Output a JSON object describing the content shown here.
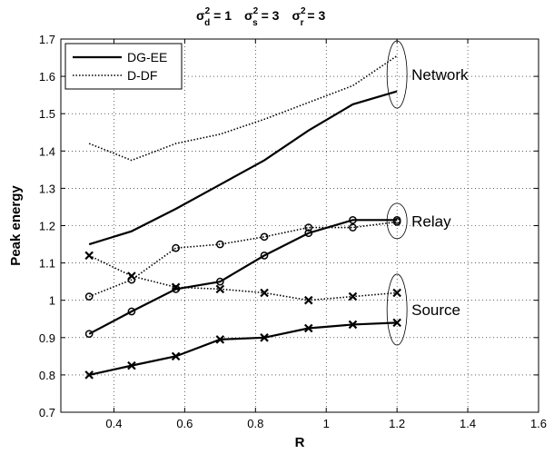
{
  "chart_data": {
    "type": "line",
    "title_parts": [
      {
        "sym": "σ",
        "sub": "d",
        "sup": "2",
        "val": " = 1"
      },
      {
        "sym": "σ",
        "sub": "s",
        "sup": "2",
        "val": " = 3"
      },
      {
        "sym": "σ",
        "sub": "r",
        "sup": "2",
        "val": " = 3"
      }
    ],
    "xlabel": "R",
    "ylabel": "Peak energy",
    "xlim": [
      0.25,
      1.6
    ],
    "ylim": [
      0.7,
      1.7
    ],
    "xticks": [
      0.4,
      0.6,
      0.8,
      1.0,
      1.2,
      1.4,
      1.6
    ],
    "yticks": [
      0.7,
      0.8,
      0.9,
      1.0,
      1.1,
      1.2,
      1.3,
      1.4,
      1.5,
      1.6,
      1.7
    ],
    "xtick_labels": [
      "0.4",
      "0.6",
      "0.8",
      "1",
      "1.2",
      "1.4",
      "1.6"
    ],
    "ytick_labels": [
      "0.7",
      "0.8",
      "0.9",
      "1",
      "1.1",
      "1.2",
      "1.3",
      "1.4",
      "1.5",
      "1.6",
      "1.7"
    ],
    "grid": true,
    "legend_position": "top-left",
    "legend": [
      {
        "label": "DG-EE",
        "style": "solid"
      },
      {
        "label": "D-DF",
        "style": "dotted"
      }
    ],
    "x": [
      0.33,
      0.45,
      0.575,
      0.7,
      0.825,
      0.95,
      1.075,
      1.2
    ],
    "series": [
      {
        "group": "Network",
        "method": "DG-EE",
        "style": "solid",
        "marker": "none",
        "values": [
          1.15,
          1.185,
          1.245,
          1.31,
          1.375,
          1.455,
          1.525,
          1.56
        ]
      },
      {
        "group": "Network",
        "method": "D-DF",
        "style": "dotted",
        "marker": "none",
        "values": [
          1.42,
          1.375,
          1.42,
          1.445,
          1.485,
          1.53,
          1.575,
          1.655
        ]
      },
      {
        "group": "Relay",
        "method": "DG-EE",
        "style": "solid",
        "marker": "circle",
        "values": [
          0.91,
          0.97,
          1.03,
          1.05,
          1.12,
          1.18,
          1.215,
          1.215
        ]
      },
      {
        "group": "Relay",
        "method": "D-DF",
        "style": "dotted",
        "marker": "circle",
        "values": [
          1.01,
          1.055,
          1.14,
          1.15,
          1.17,
          1.195,
          1.195,
          1.21
        ]
      },
      {
        "group": "Source",
        "method": "DG-EE",
        "style": "solid",
        "marker": "x",
        "values": [
          0.8,
          0.825,
          0.85,
          0.895,
          0.9,
          0.925,
          0.935,
          0.94
        ]
      },
      {
        "group": "Source",
        "method": "D-DF",
        "style": "dotted",
        "marker": "x",
        "values": [
          1.12,
          1.065,
          1.035,
          1.03,
          1.02,
          1.0,
          1.01,
          1.02
        ]
      }
    ],
    "annotations": [
      {
        "text": "Network",
        "ellipse_x": 1.2,
        "ellipse_y": [
          1.515,
          1.695
        ]
      },
      {
        "text": "Relay",
        "ellipse_x": 1.2,
        "ellipse_y": [
          1.165,
          1.26
        ]
      },
      {
        "text": "Source",
        "ellipse_x": 1.2,
        "ellipse_y": [
          0.88,
          1.07
        ]
      }
    ]
  }
}
